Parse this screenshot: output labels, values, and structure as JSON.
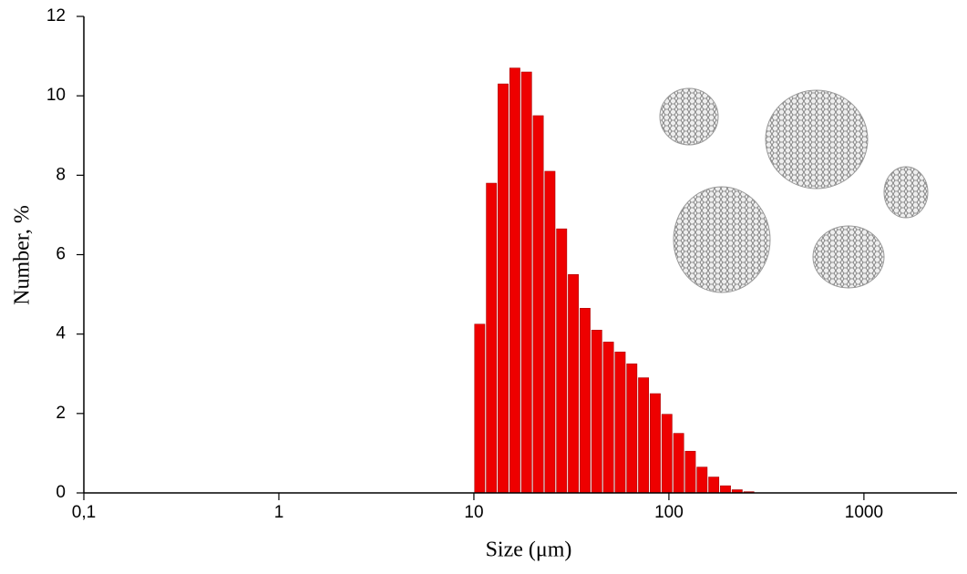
{
  "chart_data": {
    "type": "histogram",
    "x_label": "Size (μm)",
    "y_label": "Number,  %",
    "bins": [
      10,
      11.48,
      13.18,
      15.14,
      17.38,
      19.95,
      22.91,
      26.3,
      30.2,
      34.67,
      39.81,
      45.71,
      52.48,
      60.26,
      69.18,
      79.43,
      91.2,
      104.7,
      120.2,
      138.0,
      158.5,
      182.0,
      208.9,
      239.9,
      275.4
    ],
    "values": [
      4.25,
      7.8,
      10.3,
      10.7,
      10.6,
      9.5,
      8.1,
      6.65,
      5.5,
      4.65,
      4.1,
      3.8,
      3.55,
      3.25,
      2.9,
      2.5,
      1.98,
      1.5,
      1.05,
      0.65,
      0.4,
      0.18,
      0.08,
      0.03
    ],
    "color": "#ee0000",
    "x_log": true,
    "xlim": [
      0.1,
      3000
    ],
    "xticks": [
      {
        "value": 0.1,
        "label": "0,1"
      },
      1,
      10,
      100,
      1000
    ],
    "ylim": [
      0,
      12
    ],
    "yticks": [
      0,
      2,
      4,
      6,
      8,
      10,
      12
    ]
  }
}
